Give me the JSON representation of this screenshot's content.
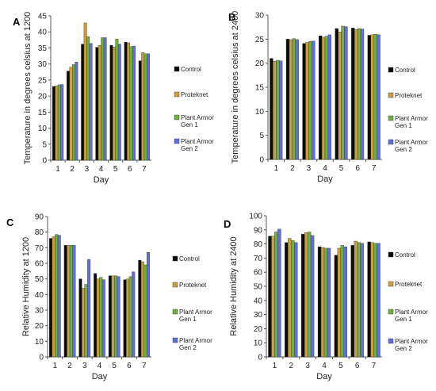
{
  "colors": {
    "control": "#0a0a0a",
    "proteknet": "#c8a040",
    "gen1": "#70b040",
    "gen2": "#6070e0"
  },
  "chart_data": [
    {
      "type": "bar",
      "panel_label": "A",
      "ylabel": "Temperature in degrees celsius at 1200",
      "xlabel": "Day",
      "categories": [
        "1",
        "2",
        "3",
        "4",
        "5",
        "6",
        "7"
      ],
      "ylim": [
        0,
        45
      ],
      "yticks": [
        0,
        5,
        10,
        15,
        20,
        25,
        30,
        35,
        40,
        45
      ],
      "legend_position": "right",
      "series": [
        {
          "name": "Control",
          "values": [
            23,
            27.8,
            36.2,
            35.2,
            35.8,
            36.8,
            31
          ]
        },
        {
          "name": "Proteknet",
          "values": [
            23.2,
            29,
            42.8,
            35.8,
            35.3,
            36.6,
            33.6
          ]
        },
        {
          "name": "Plant Armor Gen 1",
          "values": [
            23.5,
            29.8,
            38.5,
            38.2,
            37.8,
            35.4,
            33.2
          ]
        },
        {
          "name": "Plant Armor Gen 2",
          "values": [
            23.6,
            30.6,
            36.4,
            38.2,
            36.2,
            35.6,
            33.2
          ]
        }
      ]
    },
    {
      "type": "bar",
      "panel_label": "B",
      "ylabel": "Temperature in degrees celsius at 2400",
      "xlabel": "Day",
      "categories": [
        "1",
        "2",
        "3",
        "4",
        "5",
        "6",
        "7"
      ],
      "ylim": [
        0,
        30
      ],
      "yticks": [
        0,
        5,
        10,
        15,
        20,
        25,
        30
      ],
      "legend_position": "right",
      "series": [
        {
          "name": "Control",
          "values": [
            21,
            25,
            24.1,
            25.7,
            27.2,
            27.3,
            25.8
          ]
        },
        {
          "name": "Proteknet",
          "values": [
            20.4,
            24.9,
            24.3,
            25.4,
            26.5,
            27,
            25.9
          ]
        },
        {
          "name": "Plant Armor Gen 1",
          "values": [
            20.6,
            25.1,
            24.5,
            25.6,
            27.7,
            27.2,
            26
          ]
        },
        {
          "name": "Plant Armor Gen 2",
          "values": [
            20.5,
            24.9,
            24.6,
            25.9,
            27.6,
            27.1,
            25.9
          ]
        }
      ]
    },
    {
      "type": "bar",
      "panel_label": "C",
      "ylabel": "Relative Humidity at 1200",
      "xlabel": "Day",
      "categories": [
        "1",
        "2",
        "3",
        "4",
        "5",
        "6",
        "7"
      ],
      "ylim": [
        0,
        90
      ],
      "yticks": [
        0,
        10,
        20,
        30,
        40,
        50,
        60,
        70,
        80,
        90
      ],
      "legend_position": "right",
      "series": [
        {
          "name": "Control",
          "values": [
            76,
            71.5,
            50,
            53.5,
            52,
            49.5,
            62
          ]
        },
        {
          "name": "Proteknet",
          "values": [
            77,
            71.5,
            44,
            50,
            52,
            50,
            61
          ]
        },
        {
          "name": "Plant Armor Gen 1",
          "values": [
            78.5,
            71.5,
            46.5,
            51,
            52,
            51.5,
            59
          ]
        },
        {
          "name": "Plant Armor Gen 2",
          "values": [
            78,
            71.5,
            62.5,
            49.5,
            51.5,
            54.5,
            67
          ]
        }
      ]
    },
    {
      "type": "bar",
      "panel_label": "D",
      "ylabel": "Relative Humidity at 2400",
      "xlabel": "Day",
      "categories": [
        "1",
        "2",
        "3",
        "4",
        "5",
        "6",
        "7"
      ],
      "ylim": [
        0,
        100
      ],
      "yticks": [
        0,
        10,
        20,
        30,
        40,
        50,
        60,
        70,
        80,
        90,
        100
      ],
      "legend_position": "right",
      "series": [
        {
          "name": "Control",
          "values": [
            85.5,
            81,
            87,
            78,
            72,
            79,
            81.5
          ]
        },
        {
          "name": "Proteknet",
          "values": [
            85.5,
            84,
            88,
            77.5,
            77,
            82,
            81
          ]
        },
        {
          "name": "Plant Armor Gen 1",
          "values": [
            88.5,
            82.5,
            88.5,
            77,
            79,
            81,
            80.5
          ]
        },
        {
          "name": "Plant Armor Gen 2",
          "values": [
            90.5,
            81,
            86,
            77,
            78,
            80.5,
            80.5
          ]
        }
      ]
    }
  ]
}
